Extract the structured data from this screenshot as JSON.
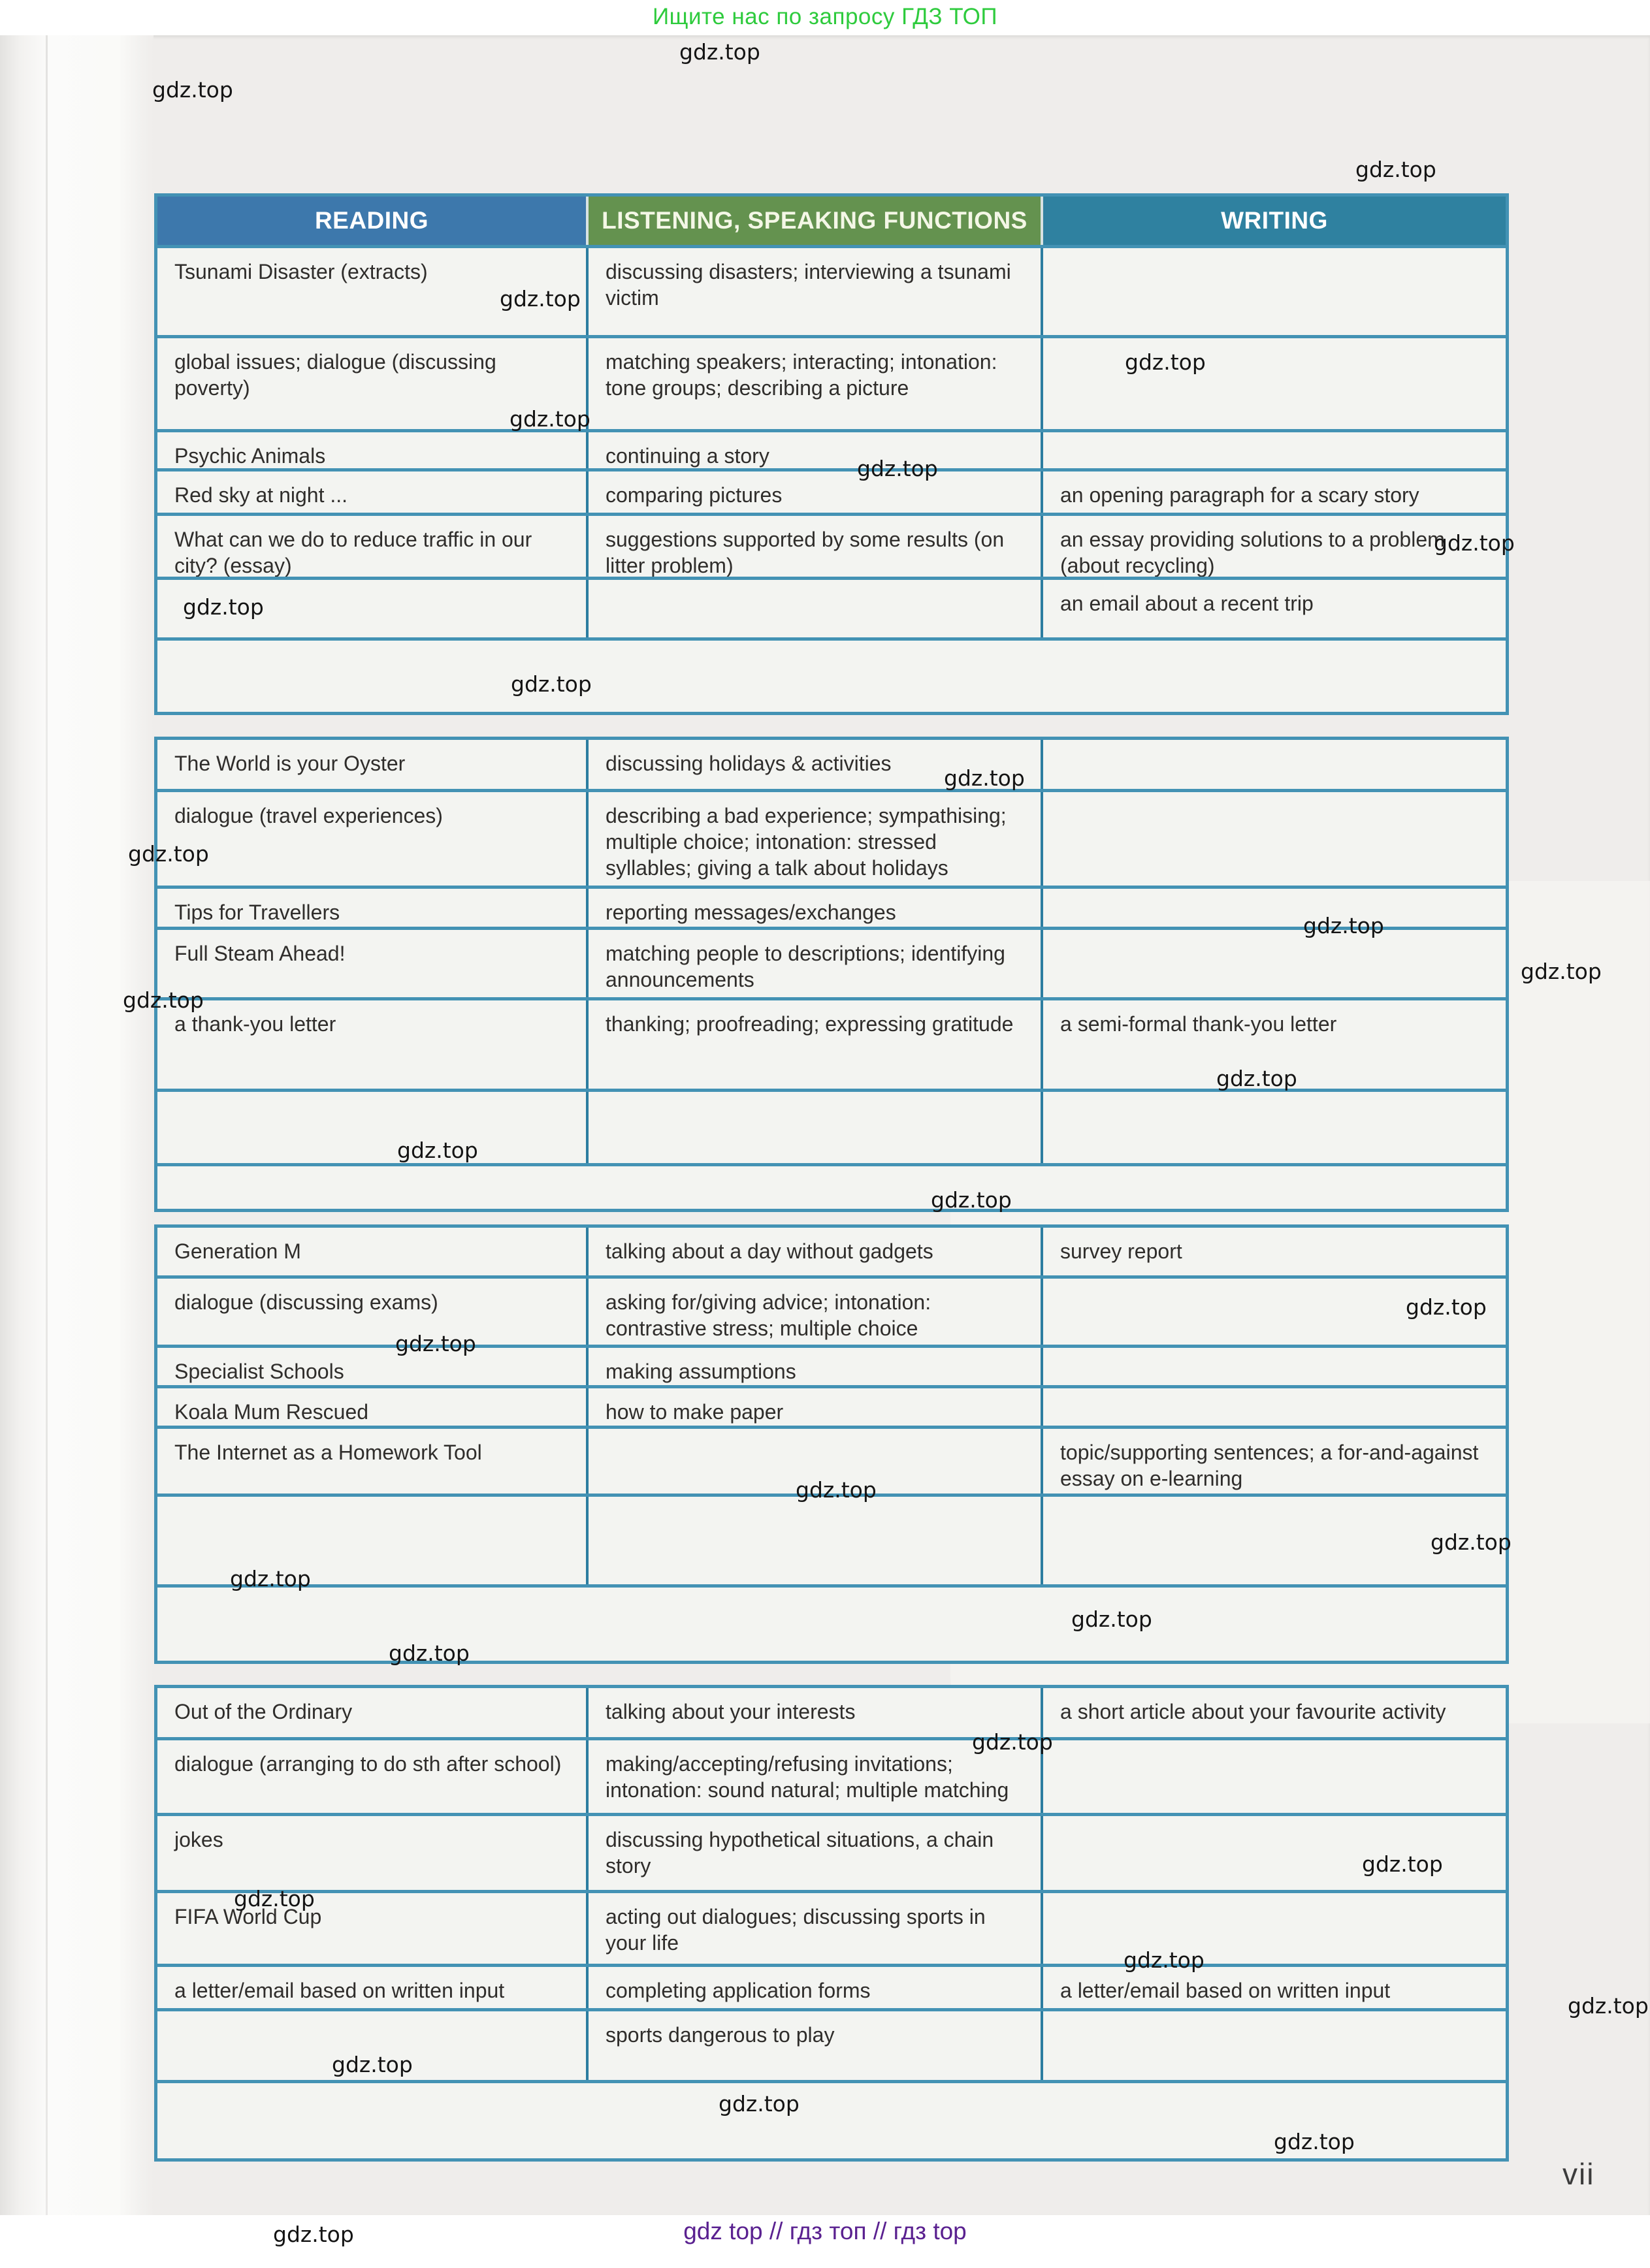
{
  "top_banner": {
    "text": "Ищите нас по запросу ГДЗ ТОП",
    "color": "#2ecb3d"
  },
  "watermark_text": "gdz.top",
  "page": {
    "number": "vii"
  },
  "footer": {
    "text": "gdz top  //  гдз топ  //  гдз top",
    "color": "#5a2190"
  },
  "table": {
    "headers": [
      "READING",
      "LISTENING, SPEAKING FUNCTIONS",
      "WRITING"
    ],
    "header_colors": [
      "#3d78ac",
      "#64924f",
      "#2f81a0"
    ],
    "header_text_colors": [
      "#ffffff",
      "#f4f7e6",
      "#ffffff"
    ],
    "border_color": "#4392b4",
    "sections": [
      {
        "rows": [
          {
            "span": "cols",
            "cells": [
              "Tsunami Disaster (extracts)",
              "discussing disasters; interviewing a tsunami victim",
              ""
            ]
          },
          {
            "span": "cols",
            "cells": [
              "global issues; dialogue (discussing poverty)",
              "matching speakers; interacting; intonation: tone groups; describing a picture",
              ""
            ]
          },
          {
            "span": "cols",
            "cells": [
              "Psychic Animals",
              "continuing a story",
              ""
            ]
          },
          {
            "span": "cols",
            "cells": [
              "Red sky at night ...",
              "comparing pictures",
              "an opening paragraph for a scary story"
            ]
          },
          {
            "span": "cols",
            "cells": [
              "What can we do to reduce traffic in our city? (essay)",
              "suggestions supported by some results (on litter problem)",
              "an essay providing solutions to a problem (about recycling)"
            ]
          },
          {
            "span": "cols",
            "cells": [
              "",
              "",
              "an email about a recent trip"
            ]
          },
          {
            "span": "full",
            "cells": [
              "",
              "",
              ""
            ]
          }
        ]
      },
      {
        "rows": [
          {
            "span": "cols",
            "cells": [
              "The World is your Oyster",
              "discussing holidays & activities",
              ""
            ]
          },
          {
            "span": "cols",
            "cells": [
              "dialogue (travel experiences)",
              "describing a bad experience; sympathising; multiple choice; intonation: stressed syllables; giving a talk about holidays",
              ""
            ]
          },
          {
            "span": "cols",
            "cells": [
              "Tips for Travellers",
              "reporting messages/exchanges",
              ""
            ]
          },
          {
            "span": "cols",
            "cells": [
              "Full Steam Ahead!",
              "matching people to descriptions; identifying announcements",
              ""
            ]
          },
          {
            "span": "cols",
            "cells": [
              "a thank-you letter",
              "thanking; proofreading; expressing gratitude",
              "a semi-formal thank-you letter"
            ]
          },
          {
            "span": "cols",
            "cells": [
              "",
              "",
              ""
            ]
          },
          {
            "span": "full",
            "cells": [
              "",
              "",
              ""
            ]
          }
        ]
      },
      {
        "rows": [
          {
            "span": "cols",
            "cells": [
              "Generation M",
              "talking about a day without gadgets",
              "survey report"
            ]
          },
          {
            "span": "cols",
            "cells": [
              "dialogue (discussing exams)",
              "asking for/giving advice; intonation: contrastive stress; multiple choice",
              ""
            ]
          },
          {
            "span": "cols",
            "cells": [
              "Specialist Schools",
              "making assumptions",
              ""
            ]
          },
          {
            "span": "cols",
            "cells": [
              "Koala Mum Rescued",
              "how to make paper",
              ""
            ]
          },
          {
            "span": "cols",
            "cells": [
              "The Internet as a Homework Tool",
              "",
              "topic/supporting sentences; a for-and-against essay on e-learning"
            ]
          },
          {
            "span": "cols",
            "cells": [
              "",
              "",
              ""
            ]
          },
          {
            "span": "full",
            "cells": [
              "",
              "",
              ""
            ]
          }
        ]
      },
      {
        "rows": [
          {
            "span": "cols",
            "cells": [
              "Out of the Ordinary",
              "talking about your interests",
              "a short article about your favourite activity"
            ]
          },
          {
            "span": "cols",
            "cells": [
              "dialogue (arranging to do sth after school)",
              "making/accepting/refusing invitations; intonation: sound natural; multiple matching",
              ""
            ]
          },
          {
            "span": "cols",
            "cells": [
              "jokes",
              "discussing hypothetical situations, a chain story",
              ""
            ]
          },
          {
            "span": "cols",
            "cells": [
              "FIFA World Cup",
              "acting out dialogues; discussing sports in your life",
              ""
            ]
          },
          {
            "span": "cols",
            "cells": [
              "a letter/email based on written input",
              "completing application forms",
              "a letter/email based on written input"
            ]
          },
          {
            "span": "cols",
            "cells": [
              "",
              "sports dangerous to play",
              ""
            ]
          },
          {
            "span": "full",
            "cells": [
              "",
              "",
              ""
            ]
          }
        ]
      }
    ]
  }
}
